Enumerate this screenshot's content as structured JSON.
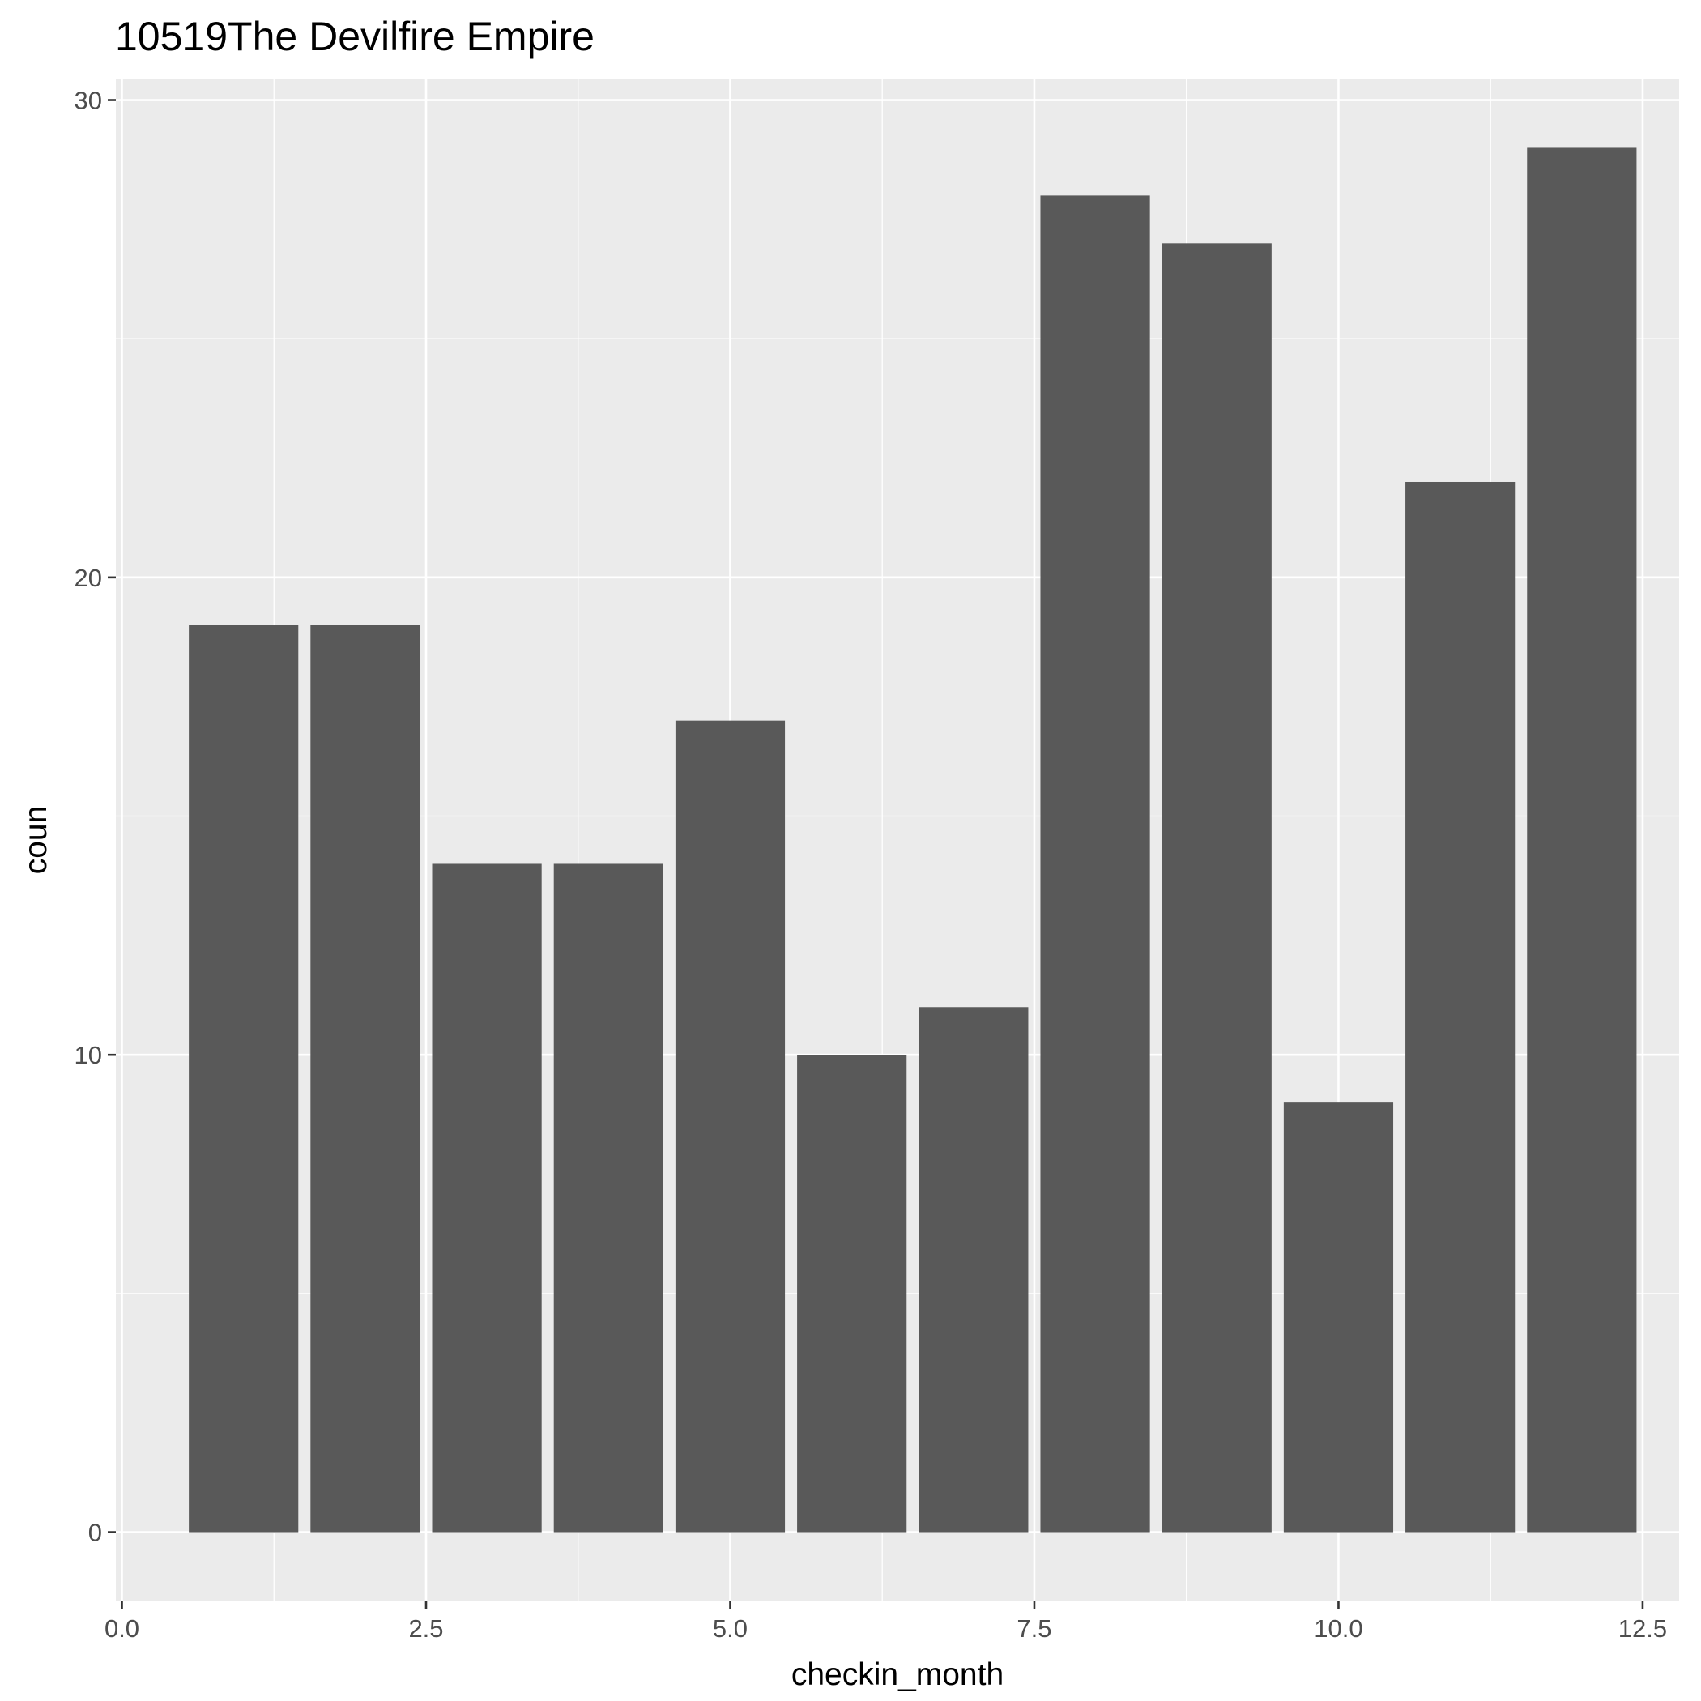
{
  "chart_data": {
    "type": "bar",
    "title": "10519The Devilfire Empire",
    "xlabel": "checkin_month",
    "ylabel": "coun",
    "x": [
      1,
      2,
      3,
      4,
      5,
      6,
      7,
      8,
      9,
      10,
      11,
      12
    ],
    "values": [
      19,
      19,
      14,
      14,
      17,
      10,
      11,
      28,
      27,
      9,
      22,
      29
    ],
    "xlim": [
      -0.05,
      12.8
    ],
    "ylim": [
      -1.45,
      30.45
    ],
    "xticks": [
      0.0,
      2.5,
      5.0,
      7.5,
      10.0,
      12.5
    ],
    "xtick_labels": [
      "0.0",
      "2.5",
      "5.0",
      "7.5",
      "10.0",
      "12.5"
    ],
    "yticks": [
      0,
      10,
      20,
      30
    ],
    "ytick_labels": [
      "0",
      "10",
      "20",
      "30"
    ],
    "bar_width": 0.9,
    "grid": true,
    "legend": "none",
    "colors": {
      "bar": "#595959",
      "panel": "#ebebeb",
      "grid": "#ffffff",
      "tick": "#333333"
    }
  }
}
